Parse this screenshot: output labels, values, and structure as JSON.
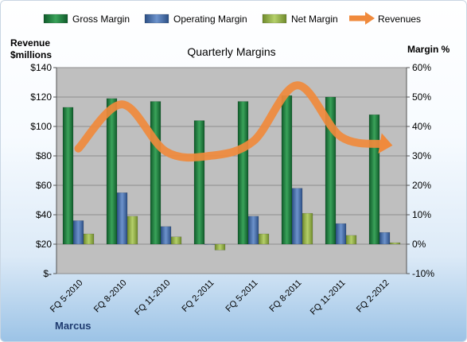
{
  "chart_data": {
    "type": "bar",
    "title": "Quarterly Margins",
    "left_axis_label": [
      "Revenue",
      "$millions"
    ],
    "right_axis_label": "Margin %",
    "footer": "Marcus",
    "categories": [
      "FQ 5-2010",
      "FQ 8-2010",
      "FQ 11-2010",
      "FQ 2-2011",
      "FQ 5-2011",
      "FQ 8-2011",
      "FQ 11-2011",
      "FQ 2-2012"
    ],
    "series": [
      {
        "name": "Gross Margin",
        "axis": "right",
        "color": "#1e7a3c",
        "values": [
          46.5,
          49.5,
          48.5,
          42,
          48.5,
          50.5,
          50,
          44
        ]
      },
      {
        "name": "Operating Margin",
        "axis": "right",
        "color": "#4a6fa8",
        "values": [
          8,
          17.5,
          6,
          0,
          9.5,
          19,
          7,
          4
        ]
      },
      {
        "name": "Net Margin",
        "axis": "right",
        "color": "#94b34a",
        "values": [
          3.5,
          9.5,
          2.5,
          -2,
          3.5,
          10.5,
          3,
          0.5
        ]
      },
      {
        "name": "Revenues",
        "axis": "left",
        "type": "line",
        "color": "#f08a3c",
        "values": [
          85,
          115,
          83,
          80,
          90,
          128,
          93,
          88
        ]
      }
    ],
    "left_axis": {
      "ylim": [
        0,
        140
      ],
      "ticks": [
        "$-",
        "$20",
        "$40",
        "$60",
        "$80",
        "$100",
        "$120",
        "$140"
      ]
    },
    "right_axis": {
      "ylim": [
        -10,
        60
      ],
      "ticks": [
        "-10%",
        "0%",
        "10%",
        "20%",
        "30%",
        "40%",
        "50%",
        "60%"
      ]
    },
    "legend_position": "top",
    "grid": true
  }
}
